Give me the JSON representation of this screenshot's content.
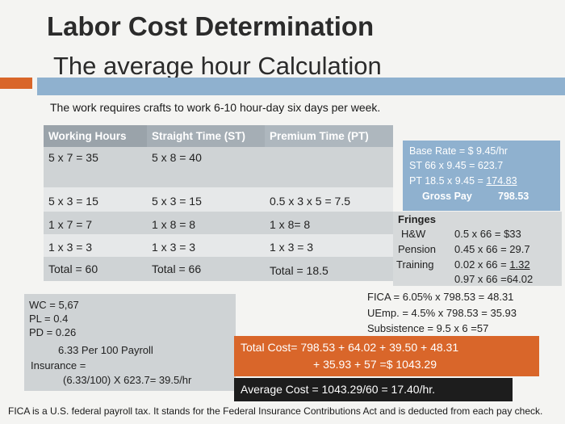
{
  "title": "Labor Cost Determination",
  "subtitle": "The average hour Calculation",
  "intro": "The work requires crafts to work 6-10 hour-day six days per week.",
  "table": {
    "headers": [
      "Working Hours",
      "Straight Time (ST)",
      "Premium Time (PT)"
    ],
    "rows": [
      [
        "5 x 7 = 35",
        "5 x 8 = 40",
        ""
      ],
      [
        "5 x 3 = 15",
        "5 x 3 = 15",
        "0.5 x 3 x 5 = 7.5"
      ],
      [
        "1 x 7 = 7",
        "1 x 8 = 8",
        "1 x 8= 8"
      ],
      [
        "1 x 3 = 3",
        "1 x 3 = 3",
        "1 x 3 = 3"
      ],
      [
        "Total = 60",
        "Total = 66",
        "Total = 18.5"
      ]
    ]
  },
  "rate_box": {
    "base_rate": "Base Rate = $ 9.45/hr",
    "st": "ST  66 x 9.45 = 623.7",
    "pt_prefix": "PT  18.5 x 9.45 = ",
    "pt_value": "174.83",
    "gross_label": "Gross Pay",
    "gross_value": "798.53"
  },
  "fringes": {
    "label": "Fringes",
    "hw_label": "H&W",
    "hw_value": "0.5 x 66    = $33",
    "pension_label": "Pension",
    "pension_value": "0.45 x 66  = 29.7",
    "training_label": "Training",
    "training_prefix": "0.02 x 66  = ",
    "training_value": "1.32",
    "sum": "0.97 x 66  =64.02"
  },
  "taxes": {
    "fica": "FICA = 6.05% x 798.53 = 48.31",
    "uemp": "UEmp. = 4.5%   x 798.53 = 35.93",
    "subsistence": "Subsistence = 9.5 x 6 =57"
  },
  "insurance_box": {
    "wc": "WC = 5,67",
    "pl": "PL = 0.4",
    "pd": "PD = 0.26",
    "per100": "6.33 Per 100 Payroll",
    "insurance": "Insurance =",
    "calc": "(6.33/100) X 623.7= 39.5/hr"
  },
  "total_cost": {
    "line1": "Total Cost= 798.53 + 64.02 + 39.50 + 48.31",
    "line2": "+ 35.93 + 57 =$ 1043.29"
  },
  "average_cost": "Average Cost = 1043.29/60 =  17.40/hr.",
  "footnote": "FICA is a U.S. federal payroll tax. It stands for the Federal Insurance Contributions Act and is deducted from each pay check.",
  "colors": {
    "accent_orange": "#d9662a",
    "accent_blue": "#8fb1cf",
    "table_header": "#9aa3aa",
    "dark_box": "#1d1d1d"
  }
}
